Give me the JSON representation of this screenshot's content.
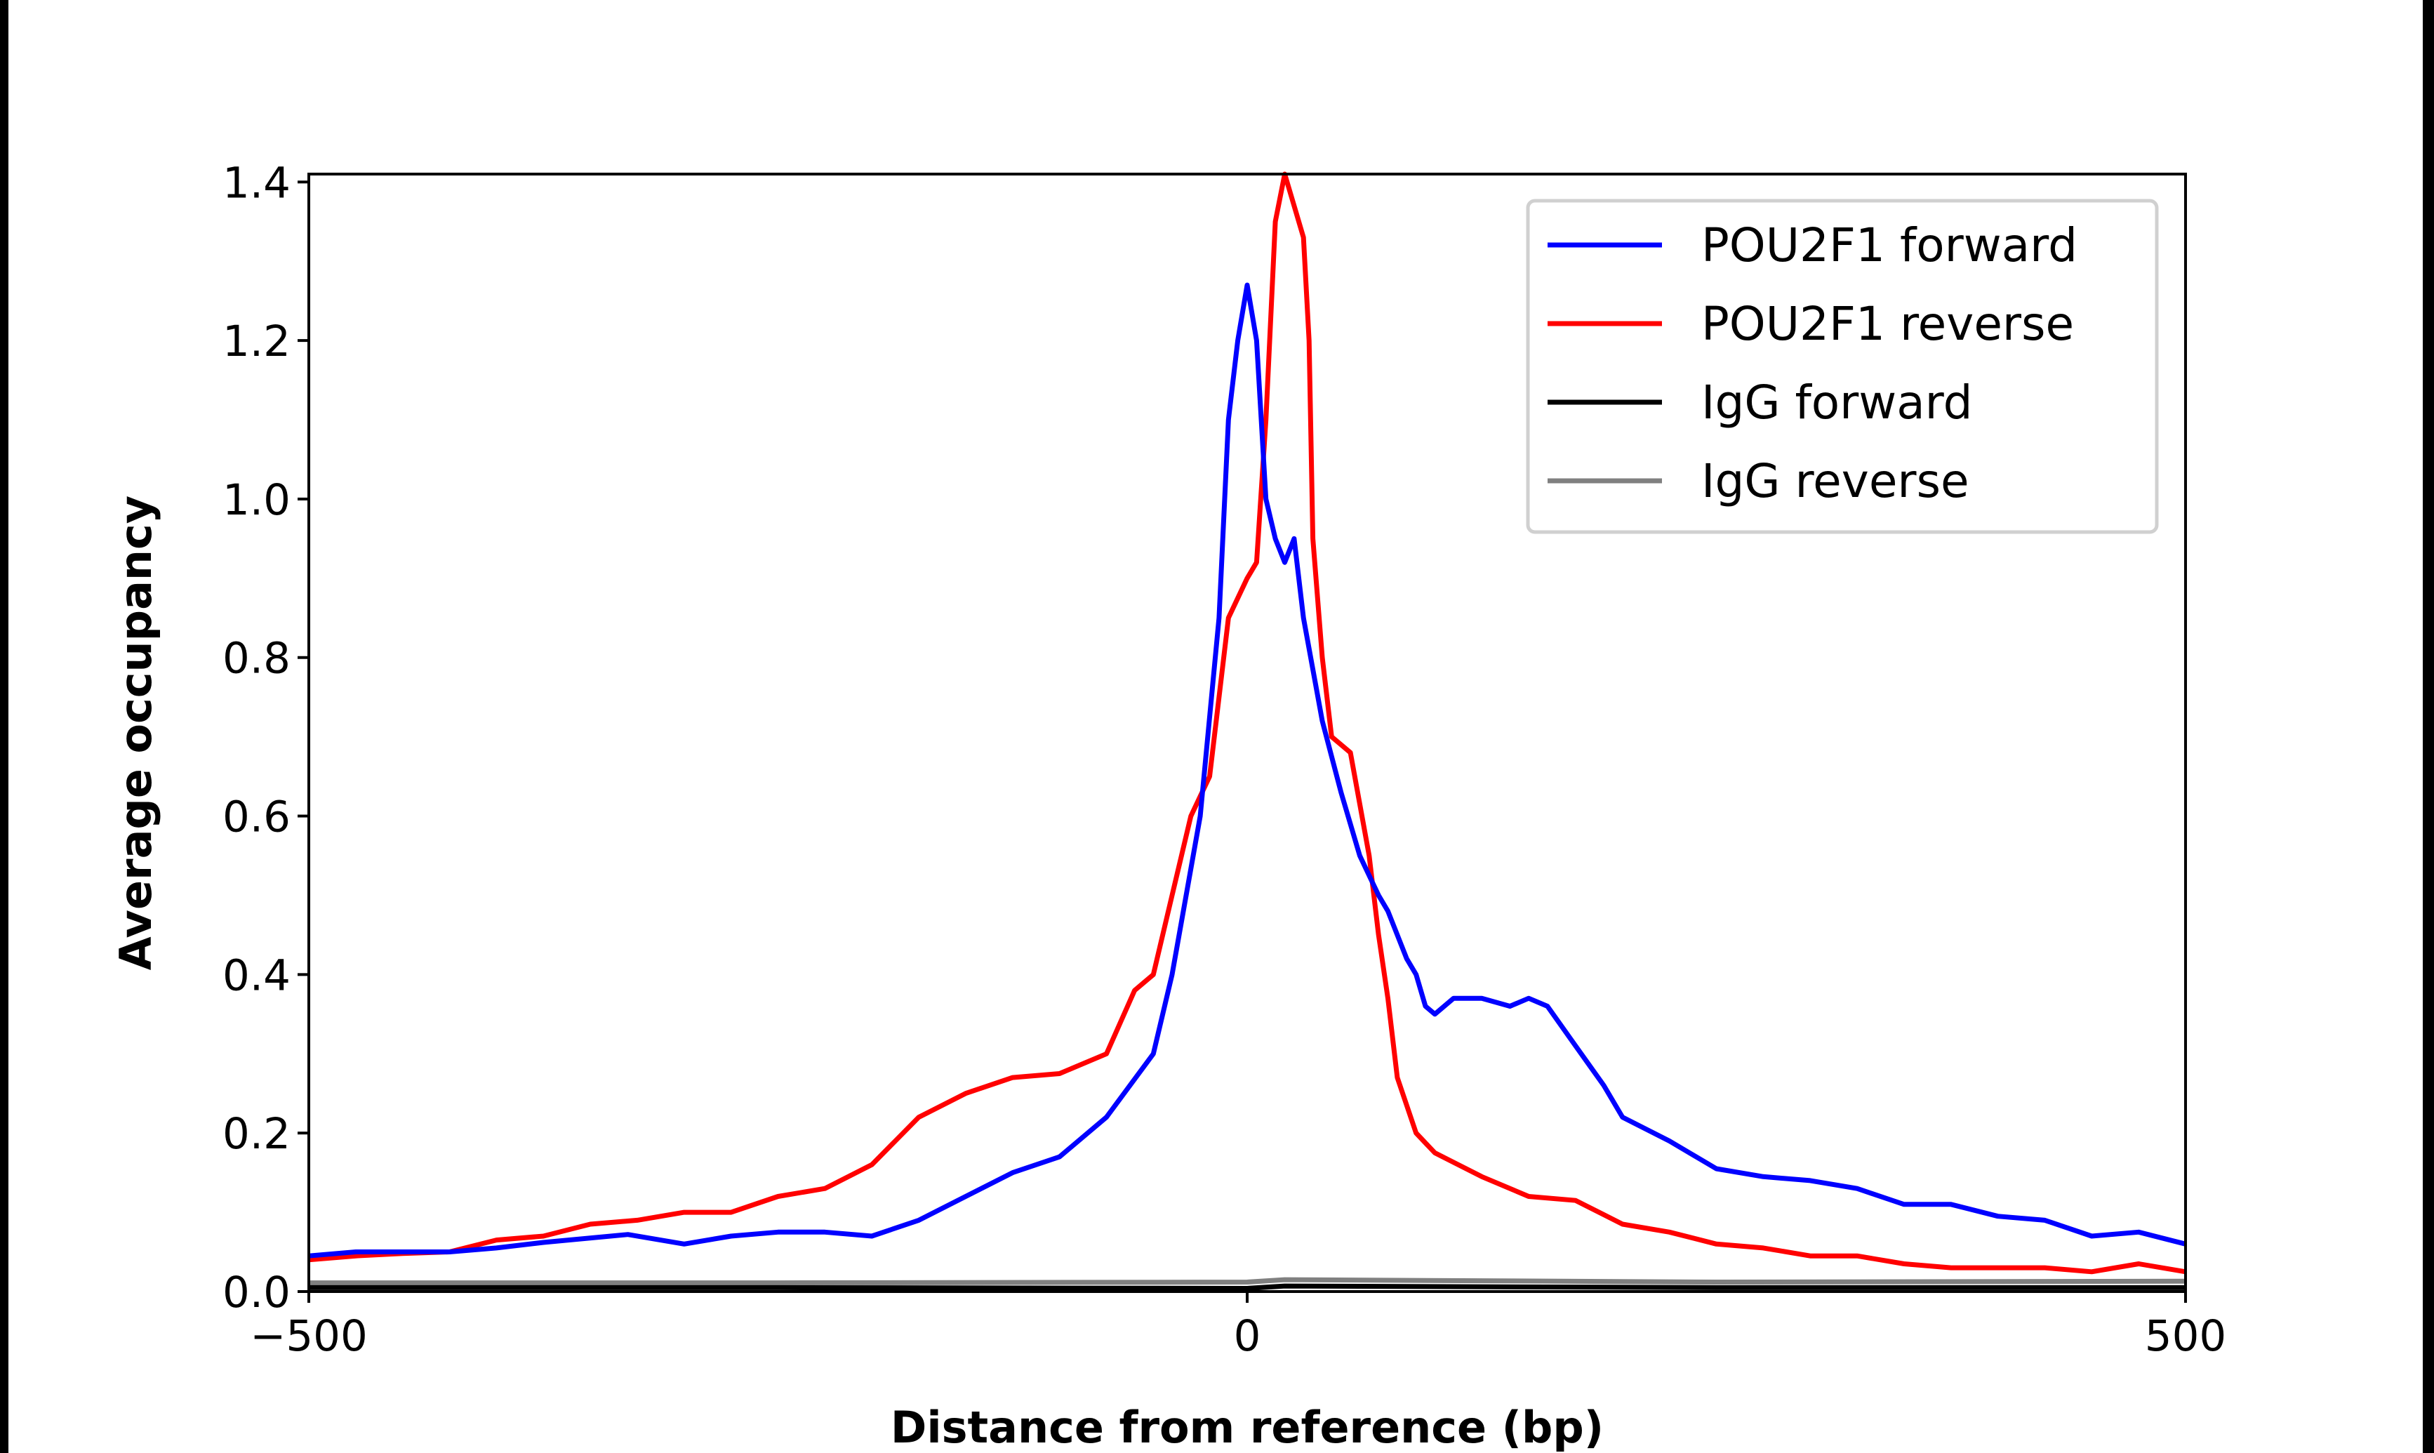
{
  "chart_data": {
    "type": "line",
    "title": "",
    "xlabel": "Distance from reference (bp)",
    "ylabel": "Average occupancy",
    "xlim": [
      -500,
      500
    ],
    "ylim": [
      0,
      1.41
    ],
    "xticks": [
      -500,
      0,
      500
    ],
    "xtick_labels": [
      "−500",
      "0",
      "500"
    ],
    "yticks": [
      0.0,
      0.2,
      0.4,
      0.6,
      0.8,
      1.0,
      1.2,
      1.4
    ],
    "ytick_labels": [
      "0.0",
      "0.2",
      "0.4",
      "0.6",
      "0.8",
      "1.0",
      "1.2",
      "1.4"
    ],
    "grid": false,
    "legend_position": "top-right",
    "series": [
      {
        "name": "POU2F1 forward",
        "color": "#0000ff",
        "x": [
          -500,
          -475,
          -450,
          -425,
          -400,
          -375,
          -330,
          -300,
          -275,
          -250,
          -225,
          -200,
          -175,
          -150,
          -125,
          -100,
          -75,
          -50,
          -40,
          -25,
          -15,
          -10,
          -5,
          0,
          5,
          10,
          15,
          20,
          25,
          30,
          40,
          50,
          60,
          70,
          75,
          85,
          90,
          95,
          100,
          110,
          125,
          140,
          150,
          160,
          175,
          190,
          200,
          225,
          250,
          275,
          300,
          325,
          350,
          375,
          400,
          425,
          450,
          475,
          500
        ],
        "y": [
          0.045,
          0.05,
          0.05,
          0.05,
          0.055,
          0.062,
          0.072,
          0.06,
          0.07,
          0.075,
          0.075,
          0.07,
          0.09,
          0.12,
          0.15,
          0.17,
          0.22,
          0.3,
          0.4,
          0.6,
          0.85,
          1.1,
          1.2,
          1.27,
          1.2,
          1.0,
          0.95,
          0.92,
          0.95,
          0.85,
          0.72,
          0.63,
          0.55,
          0.5,
          0.48,
          0.42,
          0.4,
          0.36,
          0.35,
          0.37,
          0.37,
          0.36,
          0.37,
          0.36,
          0.31,
          0.26,
          0.22,
          0.19,
          0.155,
          0.145,
          0.14,
          0.13,
          0.11,
          0.11,
          0.095,
          0.09,
          0.07,
          0.075,
          0.06
        ]
      },
      {
        "name": "POU2F1 reverse",
        "color": "#ff0000",
        "x": [
          -500,
          -475,
          -450,
          -425,
          -400,
          -375,
          -350,
          -325,
          -300,
          -275,
          -250,
          -225,
          -200,
          -175,
          -150,
          -125,
          -100,
          -75,
          -60,
          -50,
          -40,
          -30,
          -20,
          -10,
          0,
          5,
          10,
          15,
          20,
          25,
          30,
          33,
          35,
          40,
          45,
          55,
          65,
          70,
          75,
          80,
          90,
          100,
          125,
          150,
          175,
          200,
          225,
          250,
          275,
          300,
          325,
          350,
          375,
          400,
          425,
          450,
          475,
          500
        ],
        "y": [
          0.04,
          0.045,
          0.048,
          0.05,
          0.065,
          0.07,
          0.085,
          0.09,
          0.1,
          0.1,
          0.12,
          0.13,
          0.16,
          0.22,
          0.25,
          0.27,
          0.275,
          0.3,
          0.38,
          0.4,
          0.5,
          0.6,
          0.65,
          0.85,
          0.9,
          0.92,
          1.1,
          1.35,
          1.41,
          1.37,
          1.33,
          1.2,
          0.95,
          0.8,
          0.7,
          0.68,
          0.55,
          0.45,
          0.37,
          0.27,
          0.2,
          0.175,
          0.145,
          0.12,
          0.115,
          0.085,
          0.075,
          0.06,
          0.055,
          0.045,
          0.045,
          0.035,
          0.03,
          0.03,
          0.03,
          0.025,
          0.035,
          0.025
        ]
      },
      {
        "name": "IgG forward",
        "color": "#000000",
        "x": [
          -500,
          -250,
          0,
          20,
          250,
          500
        ],
        "y": [
          0.005,
          0.005,
          0.004,
          0.007,
          0.005,
          0.005
        ]
      },
      {
        "name": "IgG reverse",
        "color": "#808080",
        "x": [
          -500,
          -250,
          0,
          20,
          250,
          500
        ],
        "y": [
          0.011,
          0.011,
          0.012,
          0.015,
          0.012,
          0.013
        ]
      }
    ]
  }
}
